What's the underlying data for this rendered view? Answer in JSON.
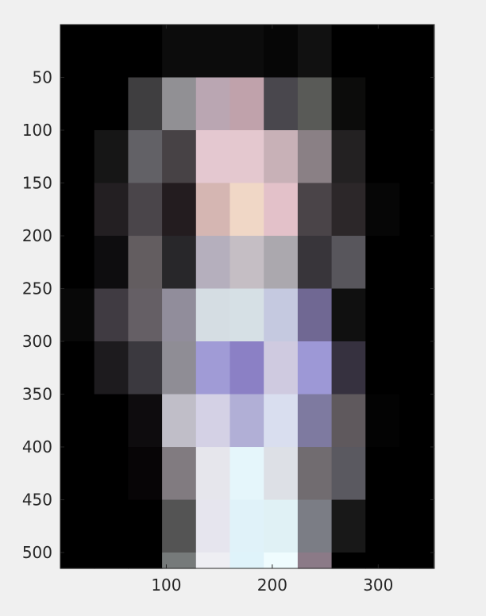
{
  "figure": {
    "background": "#f0f0f0"
  },
  "chart_data": {
    "type": "heatmap",
    "title": "",
    "xlabel": "",
    "ylabel": "",
    "xlim": [
      0,
      353
    ],
    "ylim": [
      0,
      515
    ],
    "y_reversed": true,
    "pixel_size": [
      32,
      50
    ],
    "grid": false,
    "xticks": [
      100,
      200,
      300
    ],
    "yticks": [
      50,
      100,
      150,
      200,
      250,
      300,
      350,
      400,
      450,
      500
    ],
    "xtick_labels": [
      "100",
      "200",
      "300"
    ],
    "ytick_labels": [
      "50",
      "100",
      "150",
      "200",
      "250",
      "300",
      "350",
      "400",
      "450",
      "500"
    ],
    "colors": [
      [
        "#000000",
        "#000000",
        "#000000",
        "#0c0c0c",
        "#0c0c0c",
        "#0c0c0c",
        "#060606",
        "#111111",
        "#000000",
        "#000000",
        "#000000"
      ],
      [
        "#000000",
        "#000000",
        "#3f3e40",
        "#919094",
        "#baa6b2",
        "#c0a2ab",
        "#49474d",
        "#595a57",
        "#0c0c0b",
        "#000000",
        "#000000"
      ],
      [
        "#000000",
        "#161616",
        "#626166",
        "#474245",
        "#e4c8d0",
        "#e4c8cf",
        "#c8b1b7",
        "#8a8085",
        "#232122",
        "#000000",
        "#000000"
      ],
      [
        "#000000",
        "#231f22",
        "#4a454a",
        "#231c1f",
        "#d5b6b2",
        "#f0d7c6",
        "#e3c1c9",
        "#4a4448",
        "#2c2729",
        "#060606",
        "#000000"
      ],
      [
        "#000000",
        "#0e0d0f",
        "#635d60",
        "#28272a",
        "#b5afbd",
        "#c5bec4",
        "#aba8ae",
        "#38353a",
        "#58565c",
        "#000000",
        "#000000"
      ],
      [
        "#080808",
        "#403b42",
        "#655f65",
        "#918d9b",
        "#d5dde3",
        "#d6e0e5",
        "#c5c9e0",
        "#706893",
        "#101010",
        "#000000",
        "#000000"
      ],
      [
        "#000000",
        "#1d1b1e",
        "#3b393f",
        "#8f8d95",
        "#a09bd6",
        "#8b80c5",
        "#cfcae0",
        "#9d98d6",
        "#36313f",
        "#000000",
        "#000000"
      ],
      [
        "#000000",
        "#000000",
        "#0e0c0e",
        "#c0bec8",
        "#d4d1e5",
        "#b1afd6",
        "#d9deef",
        "#7e7aa0",
        "#5f595d",
        "#030303",
        "#000000"
      ],
      [
        "#000000",
        "#000000",
        "#070506",
        "#817b80",
        "#e6e6ec",
        "#e5f6fb",
        "#dde0e6",
        "#716c70",
        "#5a5960",
        "#000000",
        "#000000"
      ],
      [
        "#000000",
        "#000000",
        "#000000",
        "#545454",
        "#e6e5ee",
        "#e0f2f9",
        "#e0f1f5",
        "#7b7d85",
        "#181818",
        "#000000",
        "#000000"
      ],
      [
        "#000000",
        "#000000",
        "#000000",
        "#767a7a",
        "#eeeef3",
        "#dff3fa",
        "#effcfe",
        "#8b7a87",
        "#000000",
        "#000000",
        "#000000"
      ],
      [
        "#000000",
        "#000000",
        "#000000",
        "#6e6d72",
        "#e7e6ee",
        "#def1f9",
        "#e9edf2",
        "#8e7d8d",
        "#000000",
        "#000000",
        "#000000"
      ],
      [
        "#000000",
        "#000000",
        "#000000",
        "#080808",
        "#5b5658",
        "#ddd4c8",
        "#5e5755",
        "#080808",
        "#000000",
        "#000000",
        "#000000"
      ],
      [
        "#000000",
        "#000000",
        "#000000",
        "#000000",
        "#231e25",
        "#b1a1b1",
        "#4b404e",
        "#000000",
        "#000000",
        "#000000",
        "#000000"
      ],
      [
        "#000000",
        "#000000",
        "#000000",
        "#000000",
        "#3b3339",
        "#554b61",
        "#251f2b",
        "#000000",
        "#000000",
        "#000000",
        "#000000"
      ],
      [
        "#000000",
        "#000000",
        "#000000",
        "#000000",
        "#100e0f",
        "#110e0e",
        "#050504",
        "#000000",
        "#000000",
        "#000000",
        "#000000"
      ]
    ]
  }
}
